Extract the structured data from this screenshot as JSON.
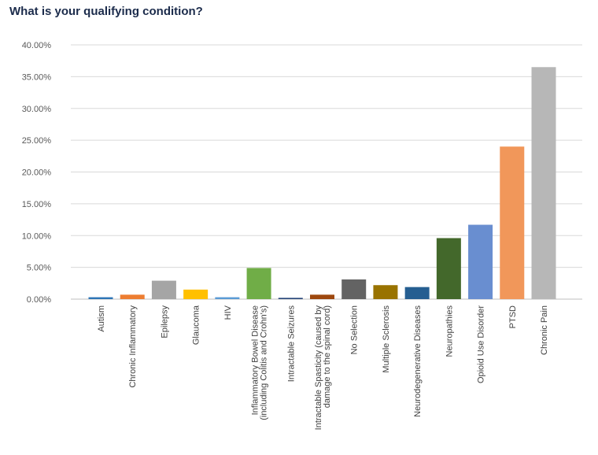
{
  "chart_data": {
    "type": "bar",
    "title": "What is your qualifying condition?",
    "categories": [
      "Autism",
      "Chronic Inflammatory",
      "Epilepsy",
      "Glaucoma",
      "HIV",
      [
        "Inflammatory Bowel Disease",
        "(including Colitis and Crohn's)"
      ],
      "Intractable Seizures",
      [
        "Intractable Spasticity (caused by",
        "damage to the spinal cord)"
      ],
      "No Selection",
      "Multiple Sclerosis",
      "Neurodegenerative Diseases",
      "Neuropathies",
      "Opioid Use Disorder",
      "PTSD",
      "Chronic Pain"
    ],
    "values": [
      0.3,
      0.7,
      2.9,
      1.5,
      0.3,
      4.9,
      0.2,
      0.7,
      3.1,
      2.2,
      1.9,
      9.6,
      11.7,
      24.0,
      36.5
    ],
    "colors": [
      "#2e75b6",
      "#ed7d31",
      "#a5a5a5",
      "#ffc000",
      "#5b9bd5",
      "#70ad47",
      "#264478",
      "#9e480e",
      "#636363",
      "#997300",
      "#255e91",
      "#43682b",
      "#698ed0",
      "#f1975a",
      "#b7b7b7"
    ],
    "ylim": [
      0,
      40
    ],
    "yticks": [
      "0.00%",
      "5.00%",
      "10.00%",
      "15.00%",
      "20.00%",
      "25.00%",
      "30.00%",
      "35.00%",
      "40.00%"
    ],
    "grid": true
  }
}
